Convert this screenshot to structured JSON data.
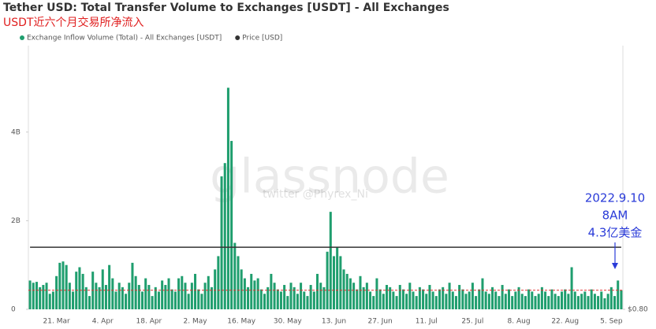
{
  "chart_data": {
    "type": "bar",
    "title": "Tether USD: Total Transfer Volume to Exchanges [USDT] - All Exchanges",
    "subtitle": "USDT近六个月交易所净流入",
    "watermark": "glassnode",
    "credit": "twitter @Phyrex_Ni",
    "categories": [
      null,
      null,
      null,
      null,
      null,
      null,
      null,
      null,
      "21. Mar",
      null,
      null,
      null,
      null,
      null,
      null,
      null,
      null,
      null,
      null,
      null,
      null,
      null,
      "4. Apr",
      null,
      null,
      null,
      null,
      null,
      null,
      null,
      null,
      null,
      null,
      null,
      null,
      null,
      "18. Apr",
      null,
      null,
      null,
      null,
      null,
      null,
      null,
      null,
      null,
      null,
      null,
      null,
      null,
      "2. May",
      null,
      null,
      null,
      null,
      null,
      null,
      null,
      null,
      null,
      null,
      null,
      null,
      null,
      "16. May",
      null,
      null,
      null,
      null,
      null,
      null,
      null,
      null,
      null,
      null,
      null,
      null,
      null,
      "30. May",
      null,
      null,
      null,
      null,
      null,
      null,
      null,
      null,
      null,
      null,
      null,
      null,
      null,
      "13. Jun",
      null,
      null,
      null,
      null,
      null,
      null,
      null,
      null,
      null,
      null,
      null,
      null,
      null,
      "27. Jun",
      null,
      null,
      null,
      null,
      null,
      null,
      null,
      null,
      null,
      null,
      null,
      null,
      null,
      "11. Jul",
      null,
      null,
      null,
      null,
      null,
      null,
      null,
      null,
      null,
      null,
      null,
      null,
      null,
      "25. Jul",
      null,
      null,
      null,
      null,
      null,
      null,
      null,
      null,
      null,
      null,
      null,
      null,
      null,
      "8. Aug",
      null,
      null,
      null,
      null,
      null,
      null,
      null,
      null,
      null,
      null,
      null,
      null,
      null,
      "22. Aug",
      null,
      null,
      null,
      null,
      null,
      null,
      null,
      null,
      null,
      null,
      null,
      null,
      null,
      "5. Sep",
      null,
      null,
      null
    ],
    "series": [
      {
        "name": "Exchange Inflow Volume (Total) - All Exchanges [USDT]",
        "color": "#1f9e6e",
        "values": [
          0.65,
          0.6,
          0.62,
          0.5,
          0.55,
          0.6,
          0.35,
          0.4,
          0.75,
          1.05,
          1.08,
          1.0,
          0.6,
          0.4,
          0.85,
          0.95,
          0.8,
          0.5,
          0.3,
          0.85,
          0.6,
          0.5,
          0.9,
          0.55,
          1.0,
          0.7,
          0.4,
          0.6,
          0.5,
          0.35,
          0.6,
          1.05,
          0.75,
          0.55,
          0.4,
          0.7,
          0.55,
          0.3,
          0.5,
          0.4,
          0.65,
          0.55,
          0.7,
          0.45,
          0.4,
          0.7,
          0.75,
          0.6,
          0.35,
          0.6,
          0.8,
          0.45,
          0.35,
          0.6,
          0.75,
          0.5,
          0.9,
          1.2,
          3.0,
          3.3,
          5.0,
          3.8,
          1.5,
          1.2,
          0.9,
          0.7,
          0.5,
          0.8,
          0.65,
          0.7,
          0.45,
          0.35,
          0.5,
          0.8,
          0.6,
          0.45,
          0.4,
          0.55,
          0.3,
          0.6,
          0.5,
          0.35,
          0.6,
          0.4,
          0.3,
          0.55,
          0.4,
          0.8,
          0.6,
          0.5,
          1.3,
          2.2,
          1.2,
          1.4,
          1.2,
          0.9,
          0.8,
          0.7,
          0.6,
          0.45,
          0.75,
          0.5,
          0.6,
          0.4,
          0.3,
          0.7,
          0.45,
          0.35,
          0.55,
          0.5,
          0.4,
          0.3,
          0.55,
          0.45,
          0.35,
          0.6,
          0.4,
          0.3,
          0.5,
          0.45,
          0.35,
          0.55,
          0.4,
          0.3,
          0.45,
          0.5,
          0.35,
          0.6,
          0.4,
          0.3,
          0.55,
          0.45,
          0.35,
          0.4,
          0.6,
          0.3,
          0.45,
          0.7,
          0.4,
          0.35,
          0.5,
          0.4,
          0.3,
          0.55,
          0.35,
          0.45,
          0.3,
          0.4,
          0.5,
          0.35,
          0.3,
          0.45,
          0.4,
          0.3,
          0.35,
          0.5,
          0.4,
          0.3,
          0.45,
          0.35,
          0.3,
          0.4,
          0.45,
          0.35,
          0.95,
          0.4,
          0.3,
          0.35,
          0.4,
          0.3,
          0.45,
          0.35,
          0.3,
          0.4,
          0.25,
          0.35,
          0.5,
          0.3,
          0.65,
          0.43
        ]
      },
      {
        "name": "Price [USD]",
        "color": "#333333",
        "axis": "y2",
        "type": "line",
        "values": [
          1,
          1,
          1,
          1,
          1,
          1,
          1,
          1,
          1,
          1,
          1,
          1,
          1,
          1,
          1,
          1,
          1,
          1,
          1,
          1,
          1,
          1,
          1,
          1,
          1,
          1,
          1,
          1,
          1,
          1,
          1,
          1,
          1,
          1,
          1,
          1,
          1,
          1,
          1,
          1,
          1,
          1,
          1,
          1,
          1,
          1,
          1,
          1,
          1,
          1,
          1,
          1,
          1,
          1,
          1,
          1,
          1,
          1,
          1,
          1,
          1,
          1,
          1,
          1,
          1,
          1,
          1,
          1,
          1,
          1,
          1,
          1,
          1,
          1,
          1,
          1,
          1,
          1,
          1,
          1,
          1,
          1,
          1,
          1,
          1,
          1,
          1,
          1,
          1,
          1,
          1,
          1,
          1,
          1,
          1,
          1,
          1,
          1,
          1,
          1,
          1,
          1,
          1,
          1,
          1,
          1,
          1,
          1,
          1,
          1,
          1,
          1,
          1,
          1,
          1,
          1,
          1,
          1,
          1,
          1,
          1,
          1,
          1,
          1,
          1,
          1,
          1,
          1,
          1,
          1,
          1,
          1,
          1,
          1,
          1,
          1,
          1,
          1,
          1,
          1,
          1,
          1,
          1,
          1,
          1,
          1,
          1,
          1,
          1,
          1,
          1,
          1,
          1,
          1,
          1,
          1,
          1,
          1,
          1,
          1,
          1,
          1,
          1,
          1,
          1,
          1,
          1,
          1,
          1,
          1,
          1,
          1,
          1,
          1,
          1,
          1,
          1,
          1,
          1,
          1
        ]
      }
    ],
    "ylim": [
      0,
      5.95
    ],
    "yticks": [
      0,
      {
        "value": 2,
        "label": "2B"
      },
      {
        "value": 4,
        "label": "4B"
      }
    ],
    "y2lim": [
      0.8,
      1.65
    ],
    "y2ticks": [
      {
        "value": 0.8,
        "label": "$0.80"
      }
    ],
    "reference_line": {
      "value": 0.43,
      "color": "#e03030"
    },
    "annotations": [
      "2022.9.10",
      "8AM",
      "4.3亿美金"
    ],
    "annotation_color": "#2a3bd8"
  }
}
